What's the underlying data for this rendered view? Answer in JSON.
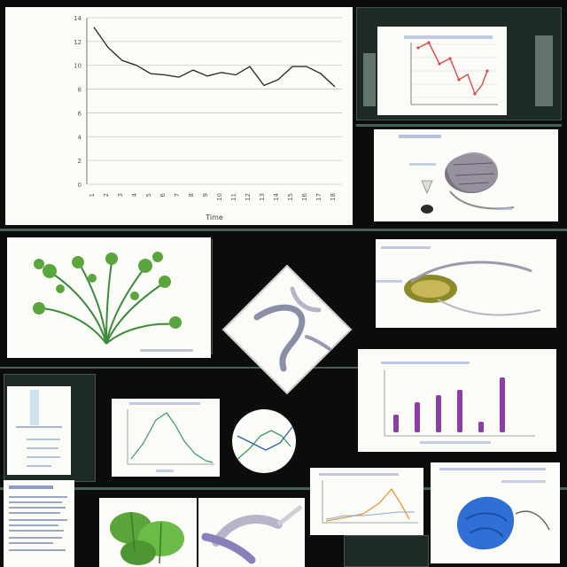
{
  "chart_data": {
    "type": "line",
    "xlabel": "Time",
    "ylabel": "",
    "categories": [
      "1",
      "2",
      "3",
      "4",
      "5",
      "6",
      "7",
      "8",
      "9",
      "10",
      "11",
      "12",
      "13",
      "14",
      "15",
      "16",
      "17",
      "18"
    ],
    "values": [
      13.2,
      11.5,
      10.4,
      10.0,
      9.3,
      9.2,
      9.0,
      9.6,
      9.1,
      9.4,
      9.2,
      9.9,
      8.3,
      8.8,
      9.9,
      9.9,
      9.3,
      8.2
    ],
    "ylim": [
      0,
      14
    ],
    "yticks": [
      "0",
      "2",
      "4",
      "6",
      "8",
      "10",
      "12",
      "14"
    ],
    "grid": true,
    "color": "#222222"
  },
  "colors": {
    "background": "#0b0d0c",
    "accent_red": "#d94a4a",
    "accent_purple": "#8a3ea6",
    "accent_blue": "#2f6fd6",
    "leaf_green": "#5aa63c"
  }
}
